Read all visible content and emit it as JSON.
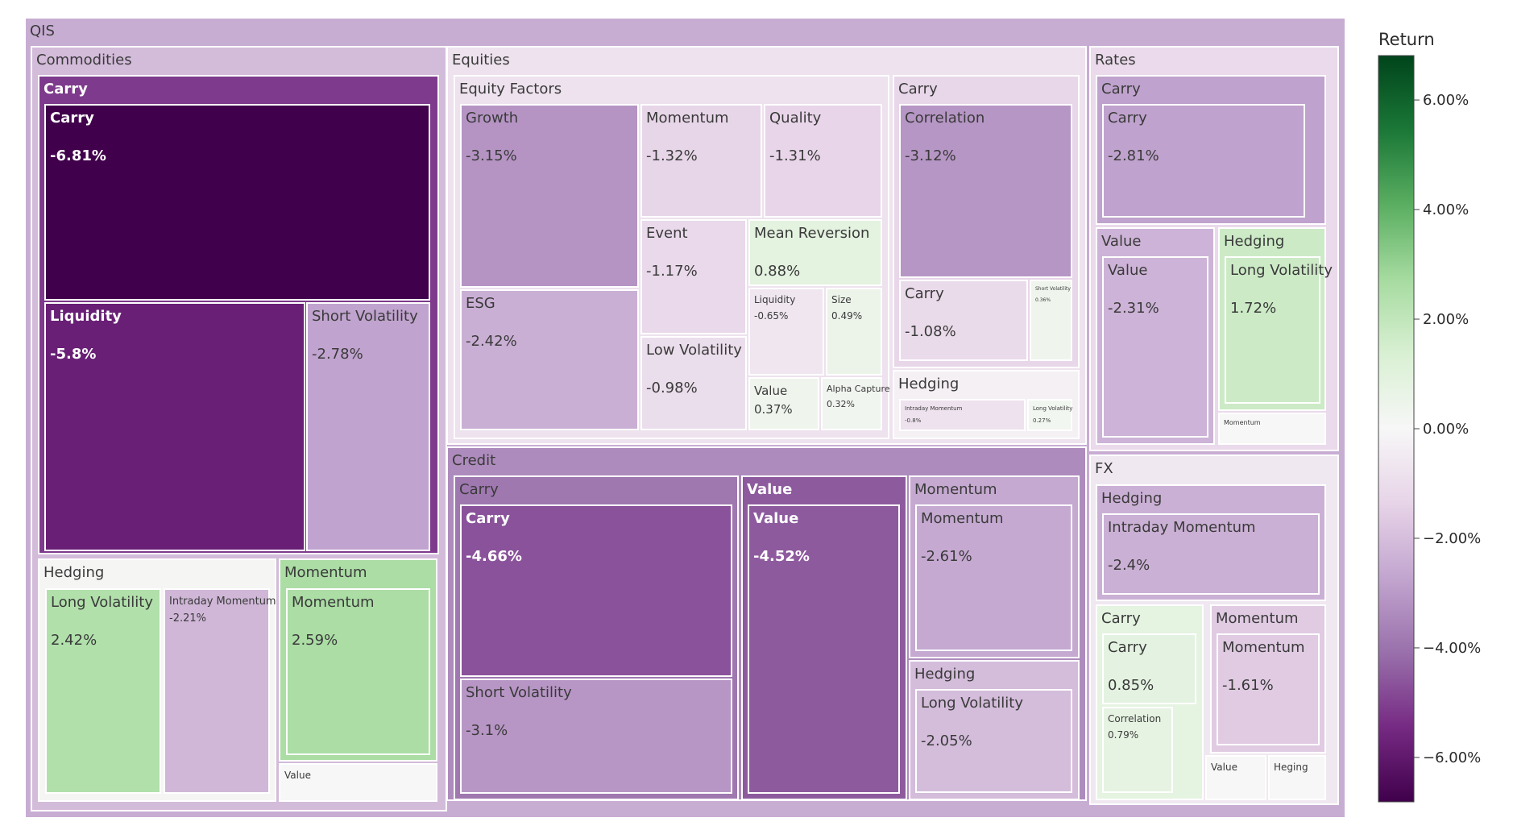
{
  "chart_data": {
    "type": "treemap",
    "root": {
      "label": "QIS",
      "children": [
        {
          "label": "Commodities",
          "children": [
            {
              "label": "Carry",
              "children": [
                {
                  "label": "Carry",
                  "value": -6.81,
                  "text": "-6.81%"
                },
                {
                  "label": "Liquidity",
                  "value": -5.8,
                  "text": "-5.8%"
                },
                {
                  "label": "Short Volatility",
                  "value": -2.78,
                  "text": "-2.78%"
                }
              ]
            },
            {
              "label": "Hedging",
              "children": [
                {
                  "label": "Long Volatility",
                  "value": 2.42,
                  "text": "2.42%"
                },
                {
                  "label": "Intraday Momentum",
                  "value": -2.21,
                  "text": "-2.21%"
                }
              ]
            },
            {
              "label": "Momentum",
              "children": [
                {
                  "label": "Momentum",
                  "value": 2.59,
                  "text": "2.59%"
                }
              ]
            },
            {
              "label": "Value",
              "children": []
            }
          ]
        },
        {
          "label": "Equities",
          "children": [
            {
              "label": "Equity Factors",
              "children": [
                {
                  "label": "Growth",
                  "value": -3.15,
                  "text": "-3.15%"
                },
                {
                  "label": "ESG",
                  "value": -2.42,
                  "text": "-2.42%"
                },
                {
                  "label": "Momentum",
                  "value": -1.32,
                  "text": "-1.32%"
                },
                {
                  "label": "Quality",
                  "value": -1.31,
                  "text": "-1.31%"
                },
                {
                  "label": "Event",
                  "value": -1.17,
                  "text": "-1.17%"
                },
                {
                  "label": "Mean Reversion",
                  "value": 0.88,
                  "text": "0.88%"
                },
                {
                  "label": "Liquidity",
                  "value": -0.65,
                  "text": "-0.65%"
                },
                {
                  "label": "Size",
                  "value": 0.49,
                  "text": "0.49%"
                },
                {
                  "label": "Low Volatility",
                  "value": -0.98,
                  "text": "-0.98%"
                },
                {
                  "label": "Value",
                  "value": 0.37,
                  "text": "0.37%"
                },
                {
                  "label": "Alpha Capture",
                  "value": 0.32,
                  "text": "0.32%"
                }
              ]
            },
            {
              "label": "Carry",
              "children": [
                {
                  "label": "Correlation",
                  "value": -3.12,
                  "text": "-3.12%"
                },
                {
                  "label": "Carry",
                  "value": -1.08,
                  "text": "-1.08%"
                },
                {
                  "label": "Short Volatility",
                  "value": 0.36,
                  "text": "0.36%"
                }
              ]
            },
            {
              "label": "Hedging",
              "children": [
                {
                  "label": "Intraday Momentum",
                  "value": -0.8,
                  "text": "-0.8%"
                },
                {
                  "label": "Long Volatility",
                  "value": 0.27,
                  "text": "0.27%"
                }
              ]
            }
          ]
        },
        {
          "label": "Credit",
          "children": [
            {
              "label": "Carry",
              "children": [
                {
                  "label": "Carry",
                  "value": -4.66,
                  "text": "-4.66%"
                },
                {
                  "label": "Short Volatility",
                  "value": -3.1,
                  "text": "-3.1%"
                }
              ]
            },
            {
              "label": "Value",
              "children": [
                {
                  "label": "Value",
                  "value": -4.52,
                  "text": "-4.52%"
                }
              ]
            },
            {
              "label": "Momentum",
              "children": [
                {
                  "label": "Momentum",
                  "value": -2.61,
                  "text": "-2.61%"
                }
              ]
            },
            {
              "label": "Hedging",
              "children": [
                {
                  "label": "Long Volatility",
                  "value": -2.05,
                  "text": "-2.05%"
                }
              ]
            }
          ]
        },
        {
          "label": "Rates",
          "children": [
            {
              "label": "Carry",
              "children": [
                {
                  "label": "Carry",
                  "value": -2.81,
                  "text": "-2.81%"
                }
              ]
            },
            {
              "label": "Value",
              "children": [
                {
                  "label": "Value",
                  "value": -2.31,
                  "text": "-2.31%"
                }
              ]
            },
            {
              "label": "Hedging",
              "children": [
                {
                  "label": "Long Volatility",
                  "value": 1.72,
                  "text": "1.72%"
                }
              ]
            },
            {
              "label": "Momentum",
              "children": []
            }
          ]
        },
        {
          "label": "FX",
          "children": [
            {
              "label": "Hedging",
              "children": [
                {
                  "label": "Intraday Momentum",
                  "value": -2.4,
                  "text": "-2.4%"
                }
              ]
            },
            {
              "label": "Carry",
              "children": [
                {
                  "label": "Carry",
                  "value": 0.85,
                  "text": "0.85%"
                },
                {
                  "label": "Correlation",
                  "value": 0.79,
                  "text": "0.79%"
                }
              ]
            },
            {
              "label": "Momentum",
              "children": [
                {
                  "label": "Momentum",
                  "value": -1.61,
                  "text": "-1.61%"
                }
              ]
            },
            {
              "label": "Value",
              "children": []
            },
            {
              "label": "Heging",
              "children": []
            }
          ]
        }
      ]
    },
    "colorbar": {
      "title": "Return",
      "range": [
        -6.81,
        6.81
      ],
      "ticks": [
        6,
        4,
        2,
        0,
        -2,
        -4,
        -6
      ],
      "tick_labels": [
        "6.00%",
        "4.00%",
        "2.00%",
        "0.00%",
        "−2.00%",
        "−4.00%",
        "−6.00%"
      ],
      "colorscale": "PRGn",
      "colors": [
        "#40004b",
        "#762a83",
        "#9970ab",
        "#c2a5cf",
        "#e7d4e8",
        "#f7f7f7",
        "#d9f0d3",
        "#a6dba0",
        "#5aae61",
        "#1b7837",
        "#00441b"
      ]
    }
  }
}
